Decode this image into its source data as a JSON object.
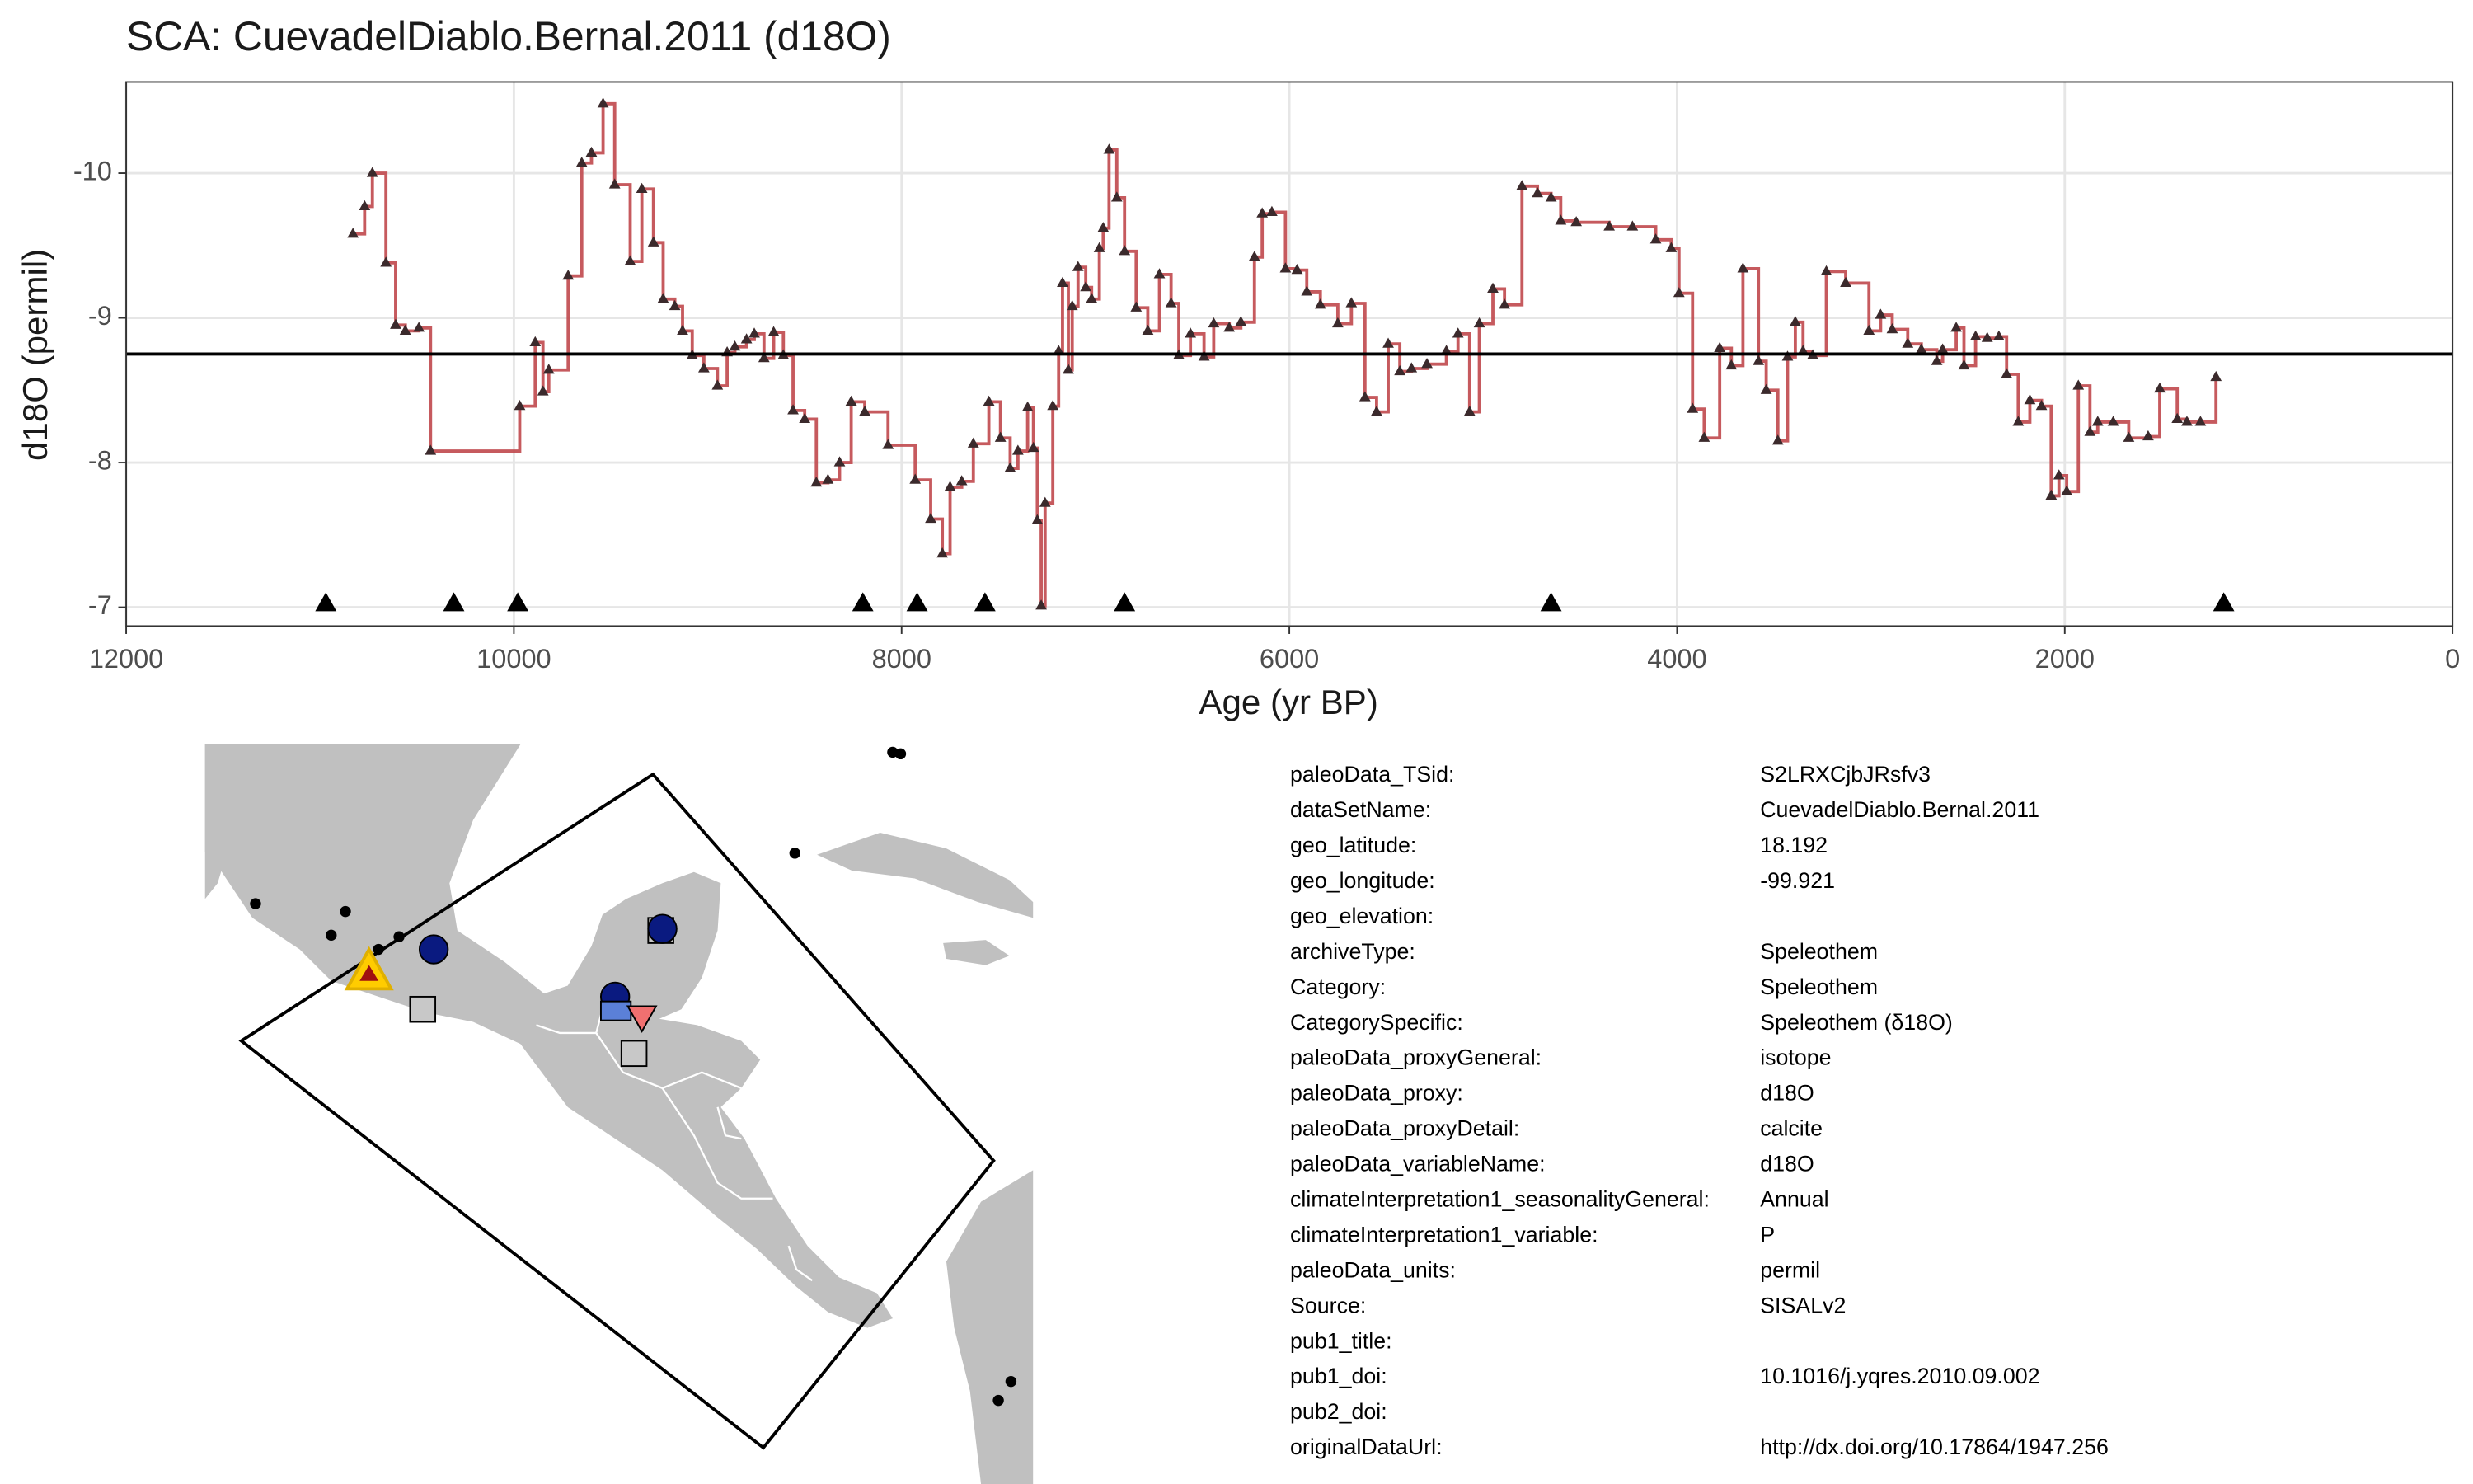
{
  "chart_data": {
    "type": "step",
    "title": "SCA: CuevadelDiablo.Bernal.2011 (d18O)",
    "x_label": "Age (yr BP)",
    "y_label": "d18O (permil)",
    "xlim": [
      12000,
      0
    ],
    "xticks": [
      12000,
      10000,
      8000,
      6000,
      4000,
      2000,
      0
    ],
    "ylim": [
      -10.63,
      -6.87
    ],
    "yticks": [
      -10,
      -9,
      -8,
      -7
    ],
    "y_reversed": true,
    "grid": true,
    "hline": -8.75,
    "series": [
      {
        "color": "#c0484d",
        "marker_color": "#3b2a2c",
        "x": [
          10830,
          10770,
          10730,
          10660,
          10610,
          10560,
          10490,
          10430,
          9970,
          9890,
          9850,
          9820,
          9720,
          9650,
          9600,
          9540,
          9480,
          9400,
          9340,
          9280,
          9230,
          9170,
          9130,
          9080,
          9020,
          8950,
          8900,
          8860,
          8800,
          8760,
          8710,
          8660,
          8610,
          8560,
          8500,
          8440,
          8380,
          8320,
          8260,
          8190,
          8070,
          7930,
          7850,
          7790,
          7750,
          7690,
          7630,
          7550,
          7490,
          7440,
          7400,
          7350,
          7320,
          7300,
          7280,
          7260,
          7220,
          7190,
          7170,
          7140,
          7120,
          7090,
          7050,
          7020,
          6980,
          6960,
          6930,
          6890,
          6850,
          6790,
          6730,
          6670,
          6610,
          6570,
          6510,
          6440,
          6390,
          6310,
          6250,
          6180,
          6140,
          6090,
          6020,
          5960,
          5910,
          5840,
          5750,
          5680,
          5610,
          5550,
          5490,
          5430,
          5370,
          5290,
          5190,
          5130,
          5070,
          5020,
          4950,
          4890,
          4800,
          4720,
          4650,
          4600,
          4520,
          4350,
          4230,
          4110,
          4030,
          3990,
          3920,
          3860,
          3780,
          3720,
          3660,
          3580,
          3540,
          3480,
          3430,
          3390,
          3350,
          3300,
          3230,
          3130,
          3010,
          2950,
          2890,
          2810,
          2740,
          2660,
          2630,
          2560,
          2520,
          2460,
          2400,
          2340,
          2300,
          2240,
          2180,
          2120,
          2070,
          2030,
          1990,
          1930,
          1870,
          1830,
          1750,
          1670,
          1570,
          1510,
          1420,
          1370,
          1300,
          1220
        ],
        "values": [
          -9.58,
          -9.77,
          -10.0,
          -9.38,
          -8.95,
          -8.91,
          -8.93,
          -8.08,
          -8.39,
          -8.83,
          -8.49,
          -8.64,
          -9.29,
          -10.07,
          -10.14,
          -10.48,
          -9.92,
          -9.39,
          -9.89,
          -9.52,
          -9.13,
          -9.08,
          -8.91,
          -8.74,
          -8.65,
          -8.53,
          -8.76,
          -8.8,
          -8.85,
          -8.89,
          -8.72,
          -8.9,
          -8.74,
          -8.36,
          -8.3,
          -7.86,
          -7.88,
          -8.0,
          -8.42,
          -8.35,
          -8.12,
          -7.88,
          -7.61,
          -7.37,
          -7.83,
          -7.87,
          -8.13,
          -8.42,
          -8.17,
          -7.96,
          -8.08,
          -8.38,
          -8.1,
          -7.6,
          -7.01,
          -7.72,
          -8.39,
          -8.77,
          -9.24,
          -8.64,
          -9.08,
          -9.35,
          -9.21,
          -9.13,
          -9.48,
          -9.62,
          -10.16,
          -9.83,
          -9.46,
          -9.07,
          -8.91,
          -9.3,
          -9.1,
          -8.74,
          -8.89,
          -8.73,
          -8.96,
          -8.93,
          -8.97,
          -9.42,
          -9.72,
          -9.73,
          -9.34,
          -9.33,
          -9.18,
          -9.09,
          -8.96,
          -9.1,
          -8.45,
          -8.35,
          -8.82,
          -8.63,
          -8.65,
          -8.68,
          -8.77,
          -8.89,
          -8.35,
          -8.96,
          -9.2,
          -9.09,
          -9.91,
          -9.86,
          -9.83,
          -9.67,
          -9.66,
          -9.63,
          -9.63,
          -9.54,
          -9.48,
          -9.17,
          -8.37,
          -8.17,
          -8.79,
          -8.67,
          -9.34,
          -8.7,
          -8.5,
          -8.15,
          -8.73,
          -8.97,
          -8.77,
          -8.74,
          -9.32,
          -9.24,
          -8.91,
          -9.02,
          -8.92,
          -8.82,
          -8.78,
          -8.7,
          -8.78,
          -8.93,
          -8.67,
          -8.87,
          -8.86,
          -8.87,
          -8.61,
          -8.28,
          -8.43,
          -8.39,
          -7.77,
          -7.91,
          -7.8,
          -8.53,
          -8.21,
          -8.28,
          -8.28,
          -8.17,
          -8.18,
          -8.51,
          -8.3,
          -8.28,
          -8.28,
          -8.59
        ]
      },
      {
        "color": "#000000",
        "x": [
          10970,
          10310,
          9980,
          8200,
          7920,
          7570,
          6850,
          4650,
          1180
        ],
        "values": [
          -7,
          -7,
          -7,
          -7,
          -7,
          -7,
          -7,
          -7,
          -7
        ]
      }
    ]
  },
  "metadata": {
    "rows": [
      [
        "paleoData_TSid:",
        "S2LRXCjbJRsfv3"
      ],
      [
        "dataSetName:",
        "CuevadelDiablo.Bernal.2011"
      ],
      [
        "geo_latitude:",
        "18.192"
      ],
      [
        "geo_longitude:",
        "-99.921"
      ],
      [
        "geo_elevation:"
      ],
      [
        "archiveType:",
        "Speleothem"
      ],
      [
        "Category:",
        "Speleothem"
      ],
      [
        "CategorySpecific:",
        "Speleothem (δ18O)"
      ],
      [
        "paleoData_proxyGeneral:",
        "isotope"
      ],
      [
        "paleoData_proxy:",
        "d18O"
      ],
      [
        "paleoData_proxyDetail:",
        "calcite"
      ],
      [
        "paleoData_variableName:",
        "d18O"
      ],
      [
        "climateInterpretation1_seasonalityGeneral:",
        "Annual"
      ],
      [
        "climateInterpretation1_variable:",
        "P"
      ],
      [
        "paleoData_units:",
        "permil"
      ],
      [
        "Source:",
        "SISALv2"
      ],
      [
        "pub1_title:"
      ],
      [
        "pub1_doi:",
        "10.1016/j.yqres.2010.09.002"
      ],
      [
        "pub2_doi:"
      ],
      [
        "originalDataUrl:",
        "http://dx.doi.org/10.17864/1947.256"
      ]
    ]
  }
}
